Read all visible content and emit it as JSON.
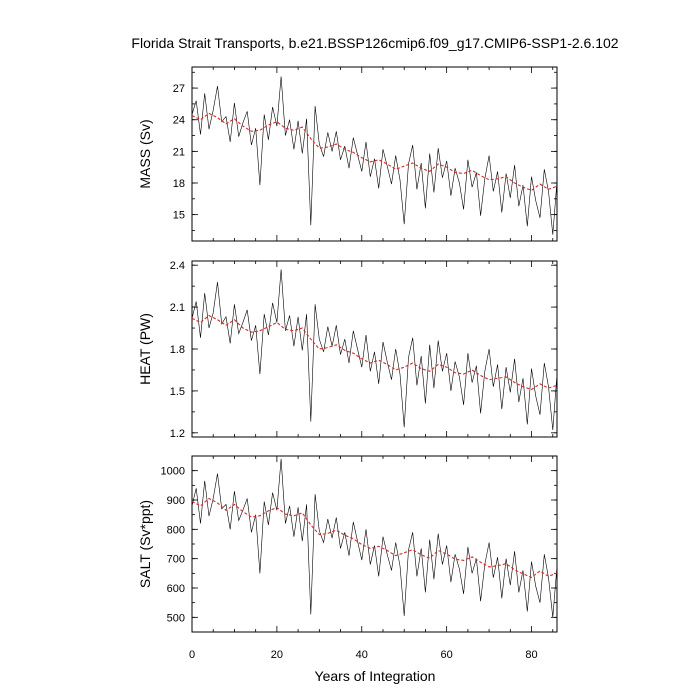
{
  "chart_data": {
    "type": "line",
    "title": "Florida Strait Transports, b.e21.BSSP126cmip6.f09_g17.CMIP6-SSP1-2.6.102",
    "xlabel": "Years of Integration",
    "xlim": [
      0,
      86
    ],
    "xticks": [
      0,
      20,
      40,
      60,
      80
    ],
    "colors": {
      "raw": "#000000",
      "smooth": "#d62728"
    },
    "panels": [
      {
        "id": "mass",
        "ylabel": "MASS (Sv)",
        "ylim": [
          12.5,
          29
        ],
        "yticks": [
          15,
          18,
          21,
          24,
          27
        ],
        "series": [
          {
            "role": "monthly",
            "x": [
              0,
              1,
              2,
              3,
              4,
              5,
              6,
              7,
              8,
              9,
              10,
              11,
              12,
              13,
              14,
              15,
              16,
              17,
              18,
              19,
              20,
              21,
              22,
              23,
              24,
              25,
              26,
              27,
              28,
              29,
              30,
              31,
              32,
              33,
              34,
              35,
              36,
              37,
              38,
              39,
              40,
              41,
              42,
              43,
              44,
              45,
              46,
              47,
              48,
              49,
              50,
              51,
              52,
              53,
              54,
              55,
              56,
              57,
              58,
              59,
              60,
              61,
              62,
              63,
              64,
              65,
              66,
              67,
              68,
              69,
              70,
              71,
              72,
              73,
              74,
              75,
              76,
              77,
              78,
              79,
              80,
              81,
              82,
              83,
              84,
              85,
              86
            ],
            "y": [
              24.5,
              25.8,
              22.6,
              26.5,
              23.1,
              24.9,
              27.2,
              23.8,
              24.3,
              21.9,
              25.6,
              22.4,
              23.7,
              24.8,
              21.6,
              23.2,
              17.8,
              24.5,
              22.1,
              25.2,
              23.4,
              28.1,
              22.5,
              24.0,
              21.2,
              23.9,
              20.8,
              24.1,
              14.0,
              25.3,
              21.7,
              20.5,
              22.8,
              21.0,
              22.9,
              20.2,
              21.5,
              19.4,
              22.3,
              20.7,
              19.1,
              21.9,
              18.6,
              20.3,
              17.5,
              21.2,
              19.6,
              17.9,
              20.6,
              18.3,
              14.1,
              19.8,
              21.6,
              17.4,
              19.9,
              15.6,
              20.8,
              17.1,
              21.3,
              18.5,
              20.1,
              16.8,
              19.4,
              18.0,
              15.5,
              20.2,
              17.6,
              19.0,
              14.9,
              18.4,
              20.6,
              17.2,
              19.1,
              15.2,
              18.9,
              16.6,
              19.7,
              15.8,
              17.8,
              13.9,
              18.6,
              16.3,
              14.7,
              19.3,
              17.2,
              13.1,
              18.2
            ]
          },
          {
            "role": "smoothed",
            "x": [
              0,
              2,
              4,
              6,
              8,
              10,
              12,
              14,
              16,
              18,
              20,
              22,
              24,
              26,
              28,
              30,
              32,
              34,
              36,
              38,
              40,
              42,
              44,
              46,
              48,
              50,
              52,
              54,
              56,
              58,
              60,
              62,
              64,
              66,
              68,
              70,
              72,
              74,
              76,
              78,
              80,
              82,
              84,
              86
            ],
            "y": [
              24.4,
              24.0,
              24.6,
              24.2,
              23.6,
              24.1,
              23.4,
              22.9,
              23.0,
              23.5,
              23.8,
              23.2,
              23.0,
              23.3,
              22.2,
              21.3,
              21.4,
              21.7,
              21.2,
              20.9,
              20.4,
              20.0,
              20.2,
              19.8,
              19.3,
              19.6,
              19.9,
              19.4,
              19.1,
              19.8,
              19.5,
              19.0,
              18.9,
              19.2,
              18.7,
              18.3,
              18.4,
              18.6,
              18.0,
              17.6,
              17.3,
              17.9,
              17.4,
              17.7
            ]
          }
        ]
      },
      {
        "id": "heat",
        "ylabel": "HEAT (PW)",
        "ylim": [
          1.17,
          2.43
        ],
        "yticks": [
          1.2,
          1.5,
          1.8,
          2.1,
          2.4
        ],
        "series": [
          {
            "role": "monthly",
            "x": [
              0,
              1,
              2,
              3,
              4,
              5,
              6,
              7,
              8,
              9,
              10,
              11,
              12,
              13,
              14,
              15,
              16,
              17,
              18,
              19,
              20,
              21,
              22,
              23,
              24,
              25,
              26,
              27,
              28,
              29,
              30,
              31,
              32,
              33,
              34,
              35,
              36,
              37,
              38,
              39,
              40,
              41,
              42,
              43,
              44,
              45,
              46,
              47,
              48,
              49,
              50,
              51,
              52,
              53,
              54,
              55,
              56,
              57,
              58,
              59,
              60,
              61,
              62,
              63,
              64,
              65,
              66,
              67,
              68,
              69,
              70,
              71,
              72,
              73,
              74,
              75,
              76,
              77,
              78,
              79,
              80,
              81,
              82,
              83,
              84,
              85,
              86
            ],
            "y": [
              2.02,
              2.14,
              1.88,
              2.2,
              1.95,
              2.06,
              2.28,
              1.98,
              2.03,
              1.84,
              2.12,
              1.91,
              1.99,
              2.08,
              1.86,
              1.97,
              1.62,
              2.05,
              1.9,
              2.13,
              1.99,
              2.37,
              1.93,
              2.04,
              1.82,
              2.03,
              1.79,
              2.05,
              1.28,
              2.12,
              1.87,
              1.78,
              1.96,
              1.82,
              1.97,
              1.76,
              1.87,
              1.7,
              1.93,
              1.8,
              1.67,
              1.9,
              1.64,
              1.78,
              1.55,
              1.85,
              1.71,
              1.58,
              1.8,
              1.62,
              1.24,
              1.74,
              1.88,
              1.54,
              1.75,
              1.41,
              1.83,
              1.52,
              1.86,
              1.64,
              1.77,
              1.5,
              1.71,
              1.6,
              1.4,
              1.77,
              1.56,
              1.68,
              1.34,
              1.64,
              1.8,
              1.53,
              1.69,
              1.37,
              1.67,
              1.49,
              1.73,
              1.42,
              1.59,
              1.26,
              1.66,
              1.46,
              1.33,
              1.7,
              1.53,
              1.22,
              1.62
            ]
          },
          {
            "role": "smoothed",
            "x": [
              0,
              2,
              4,
              6,
              8,
              10,
              12,
              14,
              16,
              18,
              20,
              22,
              24,
              26,
              28,
              30,
              32,
              34,
              36,
              38,
              40,
              42,
              44,
              46,
              48,
              50,
              52,
              54,
              56,
              58,
              60,
              62,
              64,
              66,
              68,
              70,
              72,
              74,
              76,
              78,
              80,
              82,
              84,
              86
            ],
            "y": [
              2.02,
              1.99,
              2.04,
              2.01,
              1.97,
              2.01,
              1.95,
              1.92,
              1.93,
              1.96,
              1.99,
              1.94,
              1.93,
              1.95,
              1.87,
              1.8,
              1.81,
              1.83,
              1.79,
              1.77,
              1.73,
              1.7,
              1.72,
              1.69,
              1.65,
              1.67,
              1.7,
              1.66,
              1.64,
              1.69,
              1.67,
              1.63,
              1.62,
              1.65,
              1.61,
              1.58,
              1.59,
              1.6,
              1.56,
              1.53,
              1.51,
              1.55,
              1.52,
              1.54
            ]
          }
        ]
      },
      {
        "id": "salt",
        "ylabel": "SALT (Sv*ppt)",
        "ylim": [
          450,
          1050
        ],
        "yticks": [
          500,
          600,
          700,
          800,
          900,
          1000
        ],
        "series": [
          {
            "role": "monthly",
            "x": [
              0,
              1,
              2,
              3,
              4,
              5,
              6,
              7,
              8,
              9,
              10,
              11,
              12,
              13,
              14,
              15,
              16,
              17,
              18,
              19,
              20,
              21,
              22,
              23,
              24,
              25,
              26,
              27,
              28,
              29,
              30,
              31,
              32,
              33,
              34,
              35,
              36,
              37,
              38,
              39,
              40,
              41,
              42,
              43,
              44,
              45,
              46,
              47,
              48,
              49,
              50,
              51,
              52,
              53,
              54,
              55,
              56,
              57,
              58,
              59,
              60,
              61,
              62,
              63,
              64,
              65,
              66,
              67,
              68,
              69,
              70,
              71,
              72,
              73,
              74,
              75,
              76,
              77,
              78,
              79,
              80,
              81,
              82,
              83,
              84,
              85,
              86
            ],
            "y": [
              880,
              940,
              820,
              965,
              845,
              905,
              990,
              870,
              885,
              800,
              930,
              830,
              865,
              905,
              790,
              850,
              650,
              895,
              815,
              925,
              865,
              1040,
              820,
              880,
              775,
              875,
              760,
              885,
              510,
              920,
              795,
              755,
              835,
              770,
              840,
              735,
              790,
              710,
              825,
              760,
              695,
              800,
              680,
              745,
              640,
              775,
              715,
              660,
              755,
              675,
              505,
              730,
              790,
              640,
              735,
              585,
              765,
              630,
              785,
              680,
              745,
              620,
              715,
              665,
              580,
              740,
              650,
              700,
              555,
              680,
              755,
              635,
              705,
              565,
              700,
              610,
              725,
              585,
              660,
              520,
              690,
              605,
              550,
              715,
              635,
              500,
              675
            ]
          },
          {
            "role": "smoothed",
            "x": [
              0,
              2,
              4,
              6,
              8,
              10,
              12,
              14,
              16,
              18,
              20,
              22,
              24,
              26,
              28,
              30,
              32,
              34,
              36,
              38,
              40,
              42,
              44,
              46,
              48,
              50,
              52,
              54,
              56,
              58,
              60,
              62,
              64,
              66,
              68,
              70,
              72,
              74,
              76,
              78,
              80,
              82,
              84,
              86
            ],
            "y": [
              895,
              880,
              905,
              890,
              865,
              885,
              860,
              842,
              846,
              863,
              874,
              852,
              846,
              856,
              815,
              782,
              786,
              797,
              780,
              768,
              748,
              735,
              742,
              728,
              710,
              720,
              731,
              713,
              702,
              728,
              716,
              698,
              694,
              706,
              688,
              672,
              676,
              683,
              662,
              648,
              636,
              658,
              640,
              651
            ]
          }
        ]
      }
    ]
  }
}
